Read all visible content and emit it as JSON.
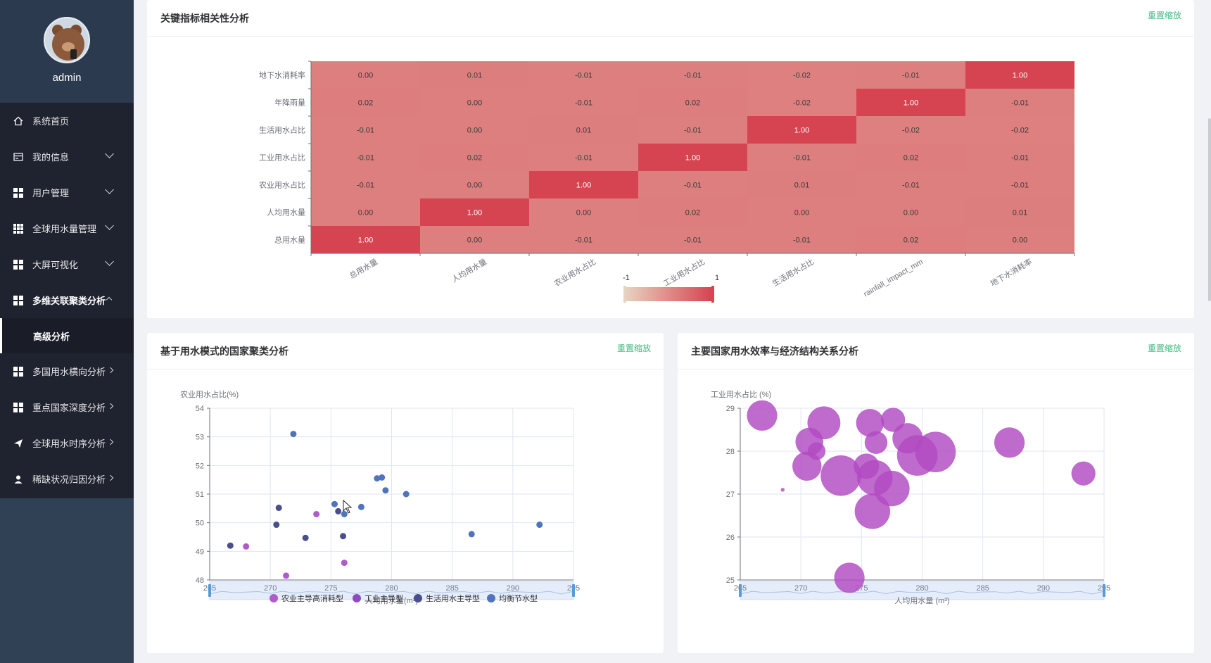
{
  "user": {
    "name": "admin"
  },
  "sidebar": {
    "items": [
      {
        "label": "系统首页",
        "icon": "home-icon"
      },
      {
        "label": "我的信息",
        "icon": "id-card-icon"
      },
      {
        "label": "用户管理",
        "icon": "grid-icon"
      },
      {
        "label": "全球用水量管理",
        "icon": "apps-icon"
      },
      {
        "label": "大屏可视化",
        "icon": "grid-icon"
      },
      {
        "label": "多维关联聚类分析",
        "icon": "grid-icon",
        "sub": "高级分析"
      },
      {
        "label": "多国用水横向分析",
        "icon": "grid-icon"
      },
      {
        "label": "重点国家深度分析",
        "icon": "grid-icon"
      },
      {
        "label": "全球用水时序分析",
        "icon": "send-icon"
      },
      {
        "label": "稀缺状况归因分析",
        "icon": "user-icon"
      }
    ]
  },
  "cards": {
    "heatmap": {
      "title": "关键指标相关性分析",
      "reset": "重置缩放"
    },
    "cluster": {
      "title": "基于用水模式的国家聚类分析",
      "reset": "重置缩放"
    },
    "bubble": {
      "title": "主要国家用水效率与经济结构关系分析",
      "reset": "重置缩放"
    }
  },
  "chart_data": [
    {
      "type": "heatmap",
      "x_labels": [
        "总用水量",
        "人均用水量",
        "农业用水占比",
        "工业用水占比",
        "生活用水占比",
        "rainfall_impact_mm",
        "地下水消耗率"
      ],
      "y_labels": [
        "总用水量",
        "人均用水量",
        "农业用水占比",
        "工业用水占比",
        "生活用水占比",
        "年降雨量",
        "地下水消耗率"
      ],
      "rows": [
        [
          "1.00",
          "0.00",
          "-0.01",
          "-0.01",
          "-0.01",
          "0.02",
          "0.00"
        ],
        [
          "0.00",
          "1.00",
          "0.00",
          "0.02",
          "0.00",
          "0.00",
          "0.01"
        ],
        [
          "-0.01",
          "0.00",
          "1.00",
          "-0.01",
          "0.01",
          "-0.01",
          "-0.01"
        ],
        [
          "-0.01",
          "0.02",
          "-0.01",
          "1.00",
          "-0.01",
          "0.02",
          "-0.01"
        ],
        [
          "-0.01",
          "0.00",
          "0.01",
          "-0.01",
          "1.00",
          "-0.02",
          "-0.02"
        ],
        [
          "0.02",
          "0.00",
          "-0.01",
          "0.02",
          "-0.02",
          "1.00",
          "-0.01"
        ],
        [
          "0.00",
          "0.01",
          "-0.01",
          "-0.01",
          "-0.02",
          "-0.01",
          "1.00"
        ]
      ],
      "visual_map": {
        "min": "-1",
        "max": "1",
        "low_color": "#e8d3c0",
        "high_color": "#d64451"
      }
    },
    {
      "type": "scatter",
      "xlabel": "人均用水量(m³)",
      "ylabel": "农业用水占比(%)",
      "xlim": [
        265,
        295
      ],
      "ylim": [
        48,
        54
      ],
      "x_ticks": [
        "265",
        "270",
        "275",
        "280",
        "285",
        "290",
        "295"
      ],
      "y_ticks": [
        "48",
        "49",
        "50",
        "51",
        "52",
        "53",
        "54"
      ],
      "series": [
        {
          "name": "农业主导高消耗型",
          "color": "#b05cc8",
          "points": [
            [
              268,
              49.17
            ],
            [
              271.3,
              48.15
            ],
            [
              273.8,
              50.3
            ],
            [
              276.1,
              48.6
            ]
          ]
        },
        {
          "name": "工业主导型",
          "color": "#8e4bc0",
          "points": []
        },
        {
          "name": "生活用水主导型",
          "color": "#4a4e8c",
          "points": [
            [
              266.7,
              49.2
            ],
            [
              270.5,
              49.93
            ],
            [
              270.7,
              50.52
            ],
            [
              272.9,
              49.47
            ],
            [
              275.6,
              50.4
            ],
            [
              276,
              49.53
            ]
          ]
        },
        {
          "name": "均衡节水型",
          "color": "#4f74bc",
          "points": [
            [
              271.9,
              53.1
            ],
            [
              275.3,
              50.65
            ],
            [
              276.1,
              50.3
            ],
            [
              277.5,
              50.55
            ],
            [
              278.8,
              51.55
            ],
            [
              279.2,
              51.58
            ],
            [
              279.5,
              51.13
            ],
            [
              281.2,
              51.0
            ],
            [
              286.6,
              49.6
            ],
            [
              292.2,
              49.93
            ]
          ]
        }
      ]
    },
    {
      "type": "scatter",
      "xlabel": "人均用水量 (m³)",
      "ylabel": "工业用水占比 (%)",
      "xlim": [
        265,
        295
      ],
      "ylim": [
        25,
        29
      ],
      "x_ticks": [
        "265",
        "270",
        "275",
        "280",
        "285",
        "290",
        "295"
      ],
      "y_ticks": [
        "25",
        "26",
        "27",
        "28",
        "29"
      ],
      "series": [
        {
          "name": "",
          "color": "#b149c2",
          "points": [
            [
              266.8,
              28.83,
              1.2
            ],
            [
              268.5,
              27.1,
              0.15
            ],
            [
              270.7,
              28.22,
              1.1
            ],
            [
              271.3,
              28.0,
              0.7
            ],
            [
              271.9,
              28.66,
              1.3
            ],
            [
              270.5,
              27.65,
              1.15
            ],
            [
              273.3,
              27.43,
              1.6
            ],
            [
              274,
              25.05,
              1.2
            ],
            [
              275.4,
              27.65,
              1.0
            ],
            [
              275.7,
              28.66,
              1.1
            ],
            [
              276.2,
              28.2,
              0.9
            ],
            [
              276.1,
              27.38,
              1.4
            ],
            [
              275.9,
              26.6,
              1.4
            ],
            [
              277.5,
              27.13,
              1.4
            ],
            [
              277.6,
              28.73,
              0.95
            ],
            [
              278.8,
              28.3,
              1.2
            ],
            [
              279.6,
              27.9,
              1.6
            ],
            [
              281.1,
              27.98,
              1.6
            ],
            [
              287.2,
              28.2,
              1.2
            ],
            [
              293.3,
              27.48,
              0.95
            ]
          ]
        }
      ]
    }
  ]
}
